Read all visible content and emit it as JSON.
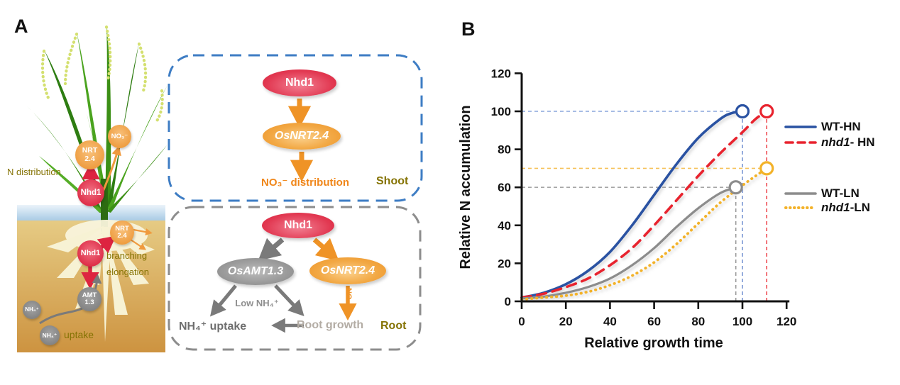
{
  "panels": {
    "a_label": "A",
    "b_label": "B"
  },
  "panel_a": {
    "plant": {
      "no3_circle": "NO₃⁻",
      "nrt_circle_line1": "NRT",
      "nrt_circle_line2": "2.4",
      "nhd1_circle": "Nhd1",
      "n_distribution": "N distribution",
      "root_nrt_line1": "NRT",
      "root_nrt_line2": "2.4",
      "root_nhd1_circle": "Nhd1",
      "branching": "branching",
      "elongation": "elongation",
      "amt_line1": "AMT",
      "amt_line2": "1.3",
      "nh4_upper": "NH₄⁺",
      "nh4_lower": "NH₄⁺",
      "uptake": "uptake"
    },
    "shoot_box": {
      "nhd1": "Nhd1",
      "osnrt24": "OsNRT2.4",
      "no3_distribution": "NO₃⁻ distribution",
      "label": "Shoot"
    },
    "root_box": {
      "nhd1": "Nhd1",
      "osamt13": "OsAMT1.3",
      "osnrt24": "OsNRT2.4",
      "low_nh4": "Low NH₄⁺",
      "nh4_uptake": "NH₄⁺ uptake",
      "root_growth": "Root growth",
      "no3_arrow_label": "NO₃⁻",
      "label": "Root"
    },
    "colors": {
      "shoot_box_border": "#3e7dc4",
      "root_box_border": "#8d8d8d",
      "olive_label": "#857304",
      "orange_accent": "#f09326",
      "red_accent": "#dd2944",
      "gray_accent": "#7a7a7a"
    }
  },
  "chart_data": {
    "type": "line",
    "title": "",
    "xlabel": "Relative growth time",
    "ylabel": "Relative N accumulation",
    "xlim": [
      0,
      120
    ],
    "ylim": [
      0,
      120
    ],
    "xticks": [
      0,
      20,
      40,
      60,
      80,
      100,
      120
    ],
    "yticks": [
      0,
      20,
      40,
      60,
      80,
      100,
      120
    ],
    "grid": false,
    "legend_position": "right",
    "series": [
      {
        "name": "WT-HN",
        "label_italic": "",
        "label_rest": "WT-HN",
        "color": "#2a52a2",
        "style": "solid",
        "width": 3.6,
        "x": [
          0,
          10,
          20,
          30,
          40,
          50,
          60,
          70,
          80,
          90,
          95,
          100
        ],
        "y": [
          2,
          4.5,
          9,
          16,
          26,
          40,
          56,
          72,
          86,
          96,
          99,
          100
        ],
        "endpoint": [
          100,
          100
        ]
      },
      {
        "name": "nhd1- HN",
        "label_italic": "nhd1",
        "label_rest": "- HN",
        "color": "#e8232e",
        "style": "dashed",
        "width": 3.6,
        "x": [
          0,
          10,
          20,
          30,
          40,
          50,
          60,
          70,
          80,
          90,
          100,
          106,
          111
        ],
        "y": [
          2,
          4,
          7.5,
          12,
          19,
          28,
          40,
          53,
          66,
          78,
          89,
          96,
          100
        ],
        "endpoint": [
          111,
          100
        ]
      },
      {
        "name": "WT-LN",
        "label_italic": "",
        "label_rest": "WT-LN",
        "color": "#8c8c8c",
        "style": "solid",
        "width": 3.2,
        "x": [
          0,
          10,
          20,
          30,
          40,
          50,
          60,
          70,
          80,
          90,
          97
        ],
        "y": [
          1.5,
          2.5,
          4.5,
          7.5,
          12,
          19,
          28,
          39,
          49,
          57,
          60
        ],
        "endpoint": [
          97,
          60
        ]
      },
      {
        "name": "nhd1-LN",
        "label_italic": "nhd1",
        "label_rest": "-LN",
        "color": "#f3b229",
        "style": "dotted",
        "width": 3.8,
        "x": [
          0,
          10,
          20,
          30,
          40,
          50,
          60,
          70,
          80,
          90,
          100,
          106,
          111
        ],
        "y": [
          1,
          2,
          3,
          5,
          8.5,
          13.5,
          20.5,
          30,
          41,
          52,
          61,
          66,
          70
        ],
        "endpoint": [
          111,
          70
        ]
      }
    ],
    "guides_horizontal": [
      {
        "y": 100,
        "x_to": 100,
        "color": "#8aa6dc"
      },
      {
        "y": 70,
        "x_to": 111,
        "color": "#f6c159"
      },
      {
        "y": 60,
        "x_to": 97,
        "color": "#a6a6a6"
      }
    ],
    "guides_vertical": [
      {
        "x": 97,
        "y_to": 60,
        "color": "#9a9a9a"
      },
      {
        "x": 100,
        "y_to": 100,
        "color": "#7b97d4"
      },
      {
        "x": 111,
        "y_to": 100,
        "color": "#ee4b52"
      }
    ]
  }
}
